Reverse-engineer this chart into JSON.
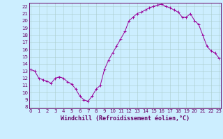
{
  "x": [
    0,
    0.5,
    1,
    1.5,
    2,
    2.5,
    3,
    3.5,
    4,
    4.5,
    5,
    5.5,
    6,
    6.5,
    7,
    7.5,
    8,
    8.5,
    9,
    9.5,
    10,
    10.5,
    11,
    11.5,
    12,
    12.5,
    13,
    13.5,
    14,
    14.5,
    15,
    15.5,
    16,
    16.5,
    17,
    17.5,
    18,
    18.5,
    19,
    19.5,
    20,
    20.5,
    21,
    21.5,
    22,
    22.5,
    23
  ],
  "y": [
    13.2,
    13.0,
    12.0,
    11.8,
    11.6,
    11.3,
    12.0,
    12.2,
    12.0,
    11.5,
    11.2,
    10.5,
    9.5,
    9.0,
    8.8,
    9.5,
    10.5,
    11.0,
    13.2,
    14.5,
    15.5,
    16.5,
    17.5,
    18.5,
    20.0,
    20.5,
    21.0,
    21.2,
    21.5,
    21.8,
    22.0,
    22.2,
    22.3,
    22.0,
    21.8,
    21.5,
    21.2,
    20.5,
    20.5,
    21.0,
    20.0,
    19.5,
    18.0,
    16.5,
    15.8,
    15.5,
    14.8
  ],
  "line_color": "#990099",
  "marker_color": "#990099",
  "bg_color": "#cceeff",
  "grid_color": "#aacccc",
  "xlabel": "Windchill (Refroidissement éolien,°C)",
  "ylabel": "",
  "ylim": [
    7.8,
    22.5
  ],
  "xlim": [
    -0.2,
    23.2
  ],
  "yticks": [
    8,
    9,
    10,
    11,
    12,
    13,
    14,
    15,
    16,
    17,
    18,
    19,
    20,
    21,
    22
  ],
  "xticks": [
    0,
    1,
    2,
    3,
    4,
    5,
    6,
    7,
    8,
    9,
    10,
    11,
    12,
    13,
    14,
    15,
    16,
    17,
    18,
    19,
    20,
    21,
    22,
    23
  ],
  "tick_color": "#660066",
  "tick_fontsize": 5.0,
  "xlabel_fontsize": 6.0,
  "border_color": "#660066"
}
